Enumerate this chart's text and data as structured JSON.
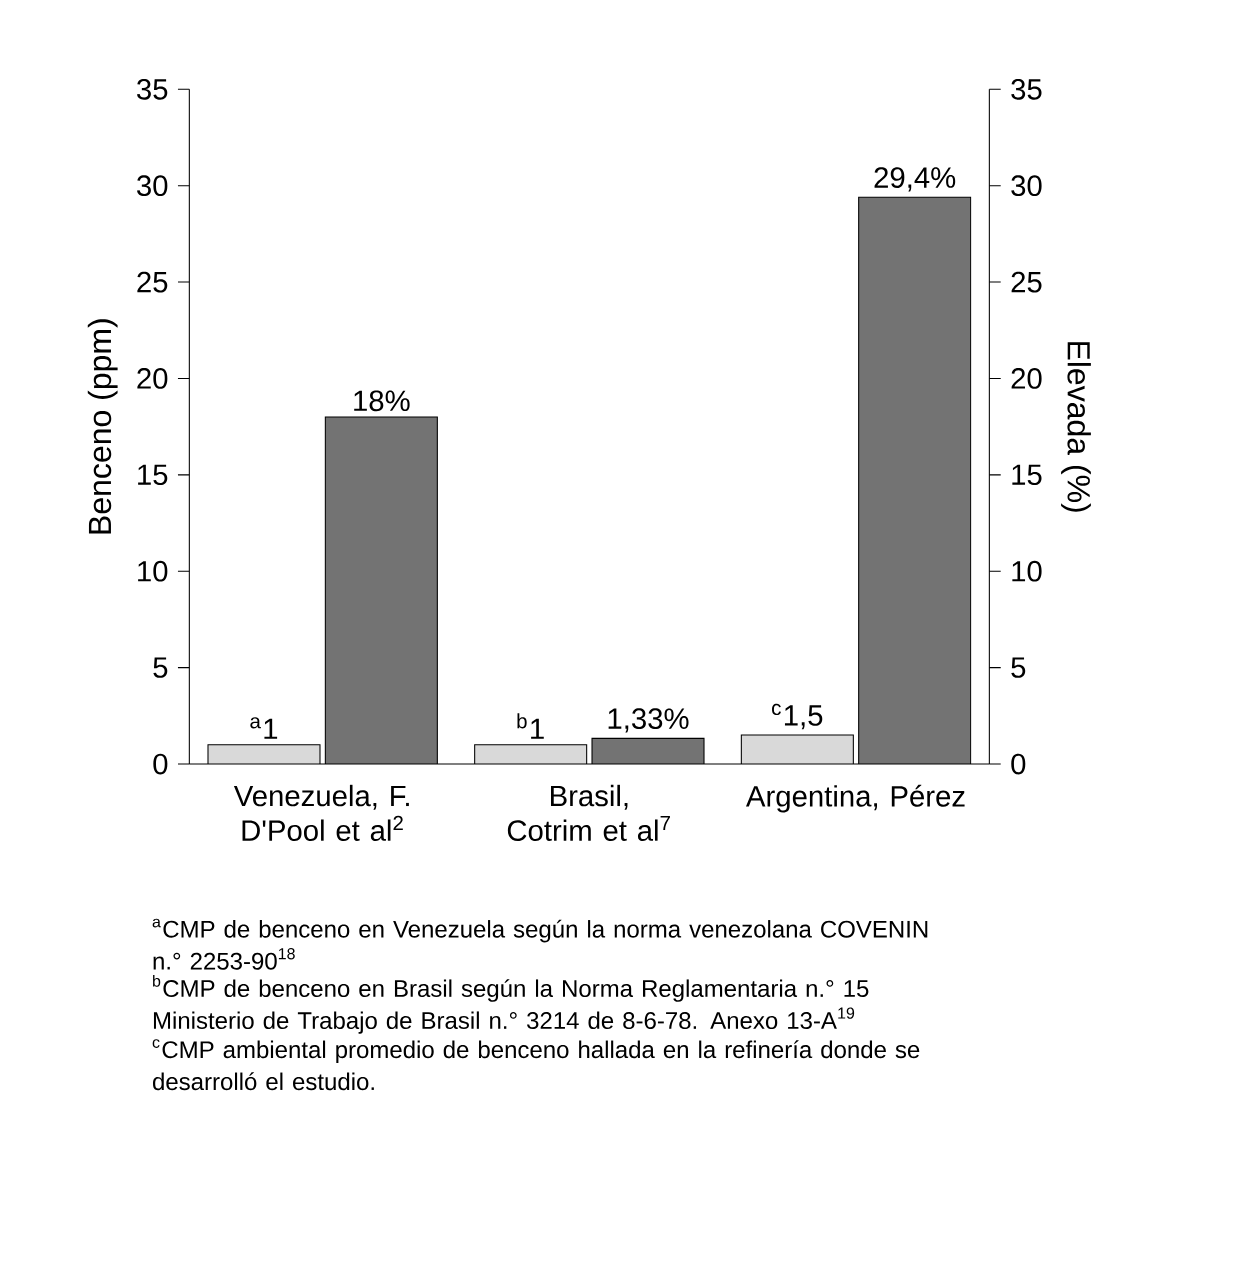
{
  "chart_data": {
    "type": "bar",
    "ylabel": "Benceno (ppm)",
    "y2label": "Elevada (%)",
    "categories": [
      "Venezuela, F. D'Pool et al$^{2}$",
      "Brasil, Cotrim et al$^{7}$",
      "Argentina, Pérez"
    ],
    "series": [
      {
        "color": "#d9d9d9",
        "values": [
          1,
          1,
          1.5
        ],
        "value_labels": [
          "$^{a}$1",
          "$^{b}$1",
          "$^{c}$1,5"
        ]
      },
      {
        "color": "#737373",
        "axis": "y2",
        "values": [
          18,
          1.33,
          29.4
        ],
        "value_labels": [
          "18%",
          "1,33%",
          "29,4%"
        ]
      }
    ],
    "ylim": [
      0,
      35
    ],
    "yticks": [
      0,
      5,
      10,
      15,
      20,
      25,
      30,
      35
    ],
    "y2lim": [
      0,
      35
    ],
    "y2ticks": [
      0,
      5,
      10,
      15,
      20,
      25,
      30,
      35
    ],
    "grid": false,
    "annotations": [
      "$^{a}$CMP de benceno en Venezuela según la norma venezolana COVENIN n.° 2253-90$^{18}$",
      "$^{b}$CMP de benceno en Brasil según la Norma Reglamentaria n.° 15 Ministerio de Trabajo de Brasil n.° 3214 de 8-6-78. Anexo 13-A$^{19}$",
      "$^{c}$CMP ambiental promedio de benceno hallada en la refinería donde se desarrolló el estudio."
    ]
  }
}
